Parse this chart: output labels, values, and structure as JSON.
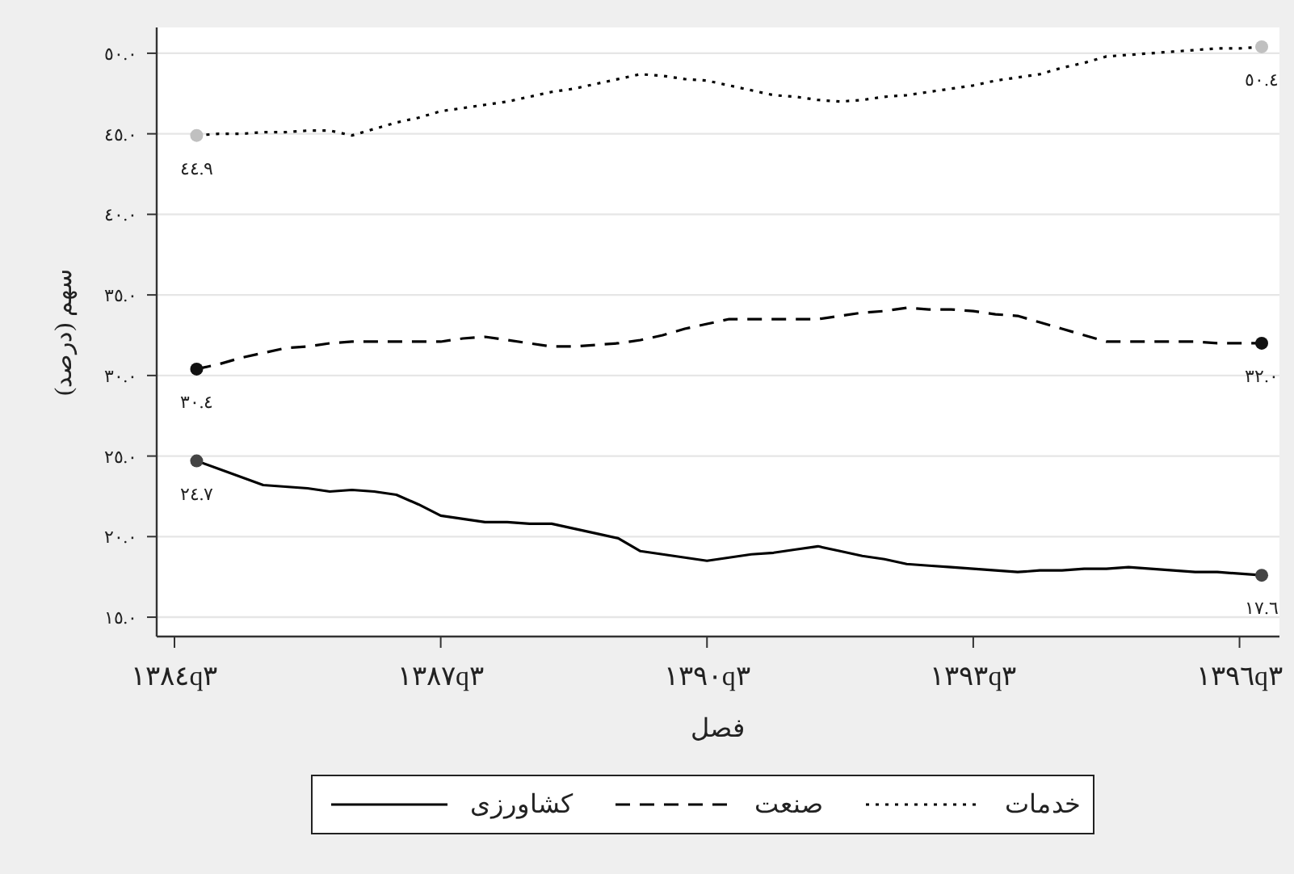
{
  "chart_data": {
    "type": "line",
    "xlabel": "فصل",
    "ylabel": "سهم (درصد)",
    "categories": [
      "١٣٨٤q٣",
      null,
      null,
      null,
      null,
      null,
      null,
      null,
      null,
      null,
      null,
      null,
      "١٣٨٧q٣",
      null,
      null,
      null,
      null,
      null,
      null,
      null,
      null,
      null,
      null,
      null,
      "١٣٩٠q٣",
      null,
      null,
      null,
      null,
      null,
      null,
      null,
      null,
      null,
      null,
      null,
      "١٣٩٣q٣",
      null,
      null,
      null,
      null,
      null,
      null,
      null,
      null,
      null,
      null,
      null,
      "١٣٩٦q٣",
      null
    ],
    "ylim": [
      13.8,
      51.6
    ],
    "yticks": [
      {
        "value": 15,
        "label": "١٥.٠"
      },
      {
        "value": 20,
        "label": "٢٠.٠"
      },
      {
        "value": 25,
        "label": "٢٥.٠"
      },
      {
        "value": 30,
        "label": "٣٠.٠"
      },
      {
        "value": 35,
        "label": "٣٥.٠"
      },
      {
        "value": 40,
        "label": "٤٠.٠"
      },
      {
        "value": 45,
        "label": "٤٥.٠"
      },
      {
        "value": 50,
        "label": "٥٠.٠"
      }
    ],
    "grid": "y",
    "legend": "bottom",
    "series": [
      {
        "name": "خدمات",
        "line_style": "dotted",
        "color": "#000000",
        "values": [
          null,
          44.9,
          45.0,
          45.0,
          45.1,
          45.1,
          45.2,
          45.2,
          44.9,
          45.3,
          45.7,
          46.0,
          46.4,
          46.6,
          46.8,
          47.0,
          47.3,
          47.6,
          47.8,
          48.1,
          48.4,
          48.7,
          48.6,
          48.4,
          48.3,
          48.0,
          47.7,
          47.4,
          47.3,
          47.1,
          47.0,
          47.1,
          47.3,
          47.4,
          47.6,
          47.8,
          48.0,
          48.3,
          48.5,
          48.7,
          49.1,
          49.4,
          49.8,
          49.9,
          50.0,
          50.1,
          50.2,
          50.3,
          50.3,
          50.4
        ]
      },
      {
        "name": "صنعت",
        "line_style": "dashed",
        "color": "#000000",
        "values": [
          null,
          30.4,
          30.7,
          31.1,
          31.4,
          31.7,
          31.8,
          32.0,
          32.1,
          32.1,
          32.1,
          32.1,
          32.1,
          32.3,
          32.4,
          32.2,
          32.0,
          31.8,
          31.8,
          31.9,
          32.0,
          32.2,
          32.5,
          32.9,
          33.2,
          33.5,
          33.5,
          33.5,
          33.5,
          33.5,
          33.7,
          33.9,
          34.0,
          34.2,
          34.1,
          34.1,
          34.0,
          33.8,
          33.7,
          33.3,
          32.9,
          32.5,
          32.1,
          32.1,
          32.1,
          32.1,
          32.1,
          32.0,
          32.0,
          32.0
        ]
      },
      {
        "name": "کشاورزی",
        "line_style": "solid",
        "color": "#000000",
        "values": [
          null,
          24.7,
          24.2,
          23.7,
          23.2,
          23.1,
          23.0,
          22.8,
          22.9,
          22.8,
          22.6,
          22.0,
          21.3,
          21.1,
          20.9,
          20.9,
          20.8,
          20.8,
          20.5,
          20.2,
          19.9,
          19.1,
          18.9,
          18.7,
          18.5,
          18.7,
          18.9,
          19.0,
          19.2,
          19.4,
          19.1,
          18.8,
          18.6,
          18.3,
          18.2,
          18.1,
          18.0,
          17.9,
          17.8,
          17.9,
          17.9,
          18.0,
          18.0,
          18.1,
          18.0,
          17.9,
          17.8,
          17.8,
          17.7,
          17.6
        ]
      },
      {
        "type": "scatter",
        "color": "#c0c0c0",
        "values": [
          null,
          44.9,
          null,
          null,
          null,
          null,
          null,
          null,
          null,
          null,
          null,
          null,
          null,
          null,
          null,
          null,
          null,
          null,
          null,
          null,
          null,
          null,
          null,
          null,
          null,
          null,
          null,
          null,
          null,
          null,
          null,
          null,
          null,
          null,
          null,
          null,
          null,
          null,
          null,
          null,
          null,
          null,
          null,
          null,
          null,
          null,
          null,
          null,
          null,
          50.4
        ],
        "value_labels": [
          null,
          "٤٤.٩",
          null,
          null,
          null,
          null,
          null,
          null,
          null,
          null,
          null,
          null,
          null,
          null,
          null,
          null,
          null,
          null,
          null,
          null,
          null,
          null,
          null,
          null,
          null,
          null,
          null,
          null,
          null,
          null,
          null,
          null,
          null,
          null,
          null,
          null,
          null,
          null,
          null,
          null,
          null,
          null,
          null,
          null,
          null,
          null,
          null,
          null,
          null,
          "٥٠.٤"
        ]
      },
      {
        "type": "scatter",
        "color": "#111111",
        "values": [
          null,
          30.4,
          null,
          null,
          null,
          null,
          null,
          null,
          null,
          null,
          null,
          null,
          null,
          null,
          null,
          null,
          null,
          null,
          null,
          null,
          null,
          null,
          null,
          null,
          null,
          null,
          null,
          null,
          null,
          null,
          null,
          null,
          null,
          null,
          null,
          null,
          null,
          null,
          null,
          null,
          null,
          null,
          null,
          null,
          null,
          null,
          null,
          null,
          null,
          32.0
        ],
        "value_labels": [
          null,
          "٣٠.٤",
          null,
          null,
          null,
          null,
          null,
          null,
          null,
          null,
          null,
          null,
          null,
          null,
          null,
          null,
          null,
          null,
          null,
          null,
          null,
          null,
          null,
          null,
          null,
          null,
          null,
          null,
          null,
          null,
          null,
          null,
          null,
          null,
          null,
          null,
          null,
          null,
          null,
          null,
          null,
          null,
          null,
          null,
          null,
          null,
          null,
          null,
          null,
          "٣٢.٠"
        ]
      },
      {
        "type": "scatter",
        "color": "#444444",
        "values": [
          null,
          24.7,
          null,
          null,
          null,
          null,
          null,
          null,
          null,
          null,
          null,
          null,
          null,
          null,
          null,
          null,
          null,
          null,
          null,
          null,
          null,
          null,
          null,
          null,
          null,
          null,
          null,
          null,
          null,
          null,
          null,
          null,
          null,
          null,
          null,
          null,
          null,
          null,
          null,
          null,
          null,
          null,
          null,
          null,
          null,
          null,
          null,
          null,
          null,
          17.6
        ],
        "value_labels": [
          null,
          "٢٤.٧",
          null,
          null,
          null,
          null,
          null,
          null,
          null,
          null,
          null,
          null,
          null,
          null,
          null,
          null,
          null,
          null,
          null,
          null,
          null,
          null,
          null,
          null,
          null,
          null,
          null,
          null,
          null,
          null,
          null,
          null,
          null,
          null,
          null,
          null,
          null,
          null,
          null,
          null,
          null,
          null,
          null,
          null,
          null,
          null,
          null,
          null,
          null,
          "١٧.٦"
        ]
      }
    ]
  }
}
